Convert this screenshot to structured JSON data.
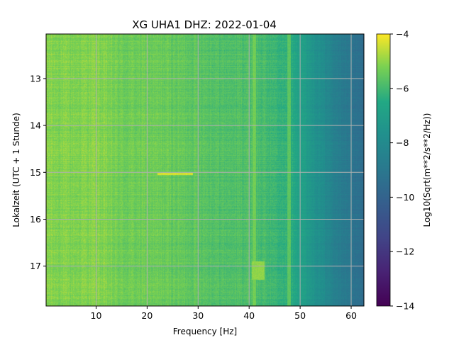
{
  "chart_data": {
    "type": "heatmap",
    "title": "XG UHA1  DHZ: 2022-01-04",
    "xlabel": "Frequency [Hz]",
    "ylabel": "Lokalzeit (UTC + 1 Stunde)",
    "xlim": [
      0.2,
      62.5
    ],
    "ylim": [
      17.85,
      12.05
    ],
    "y_inverted": true,
    "xticks": [
      10,
      20,
      30,
      40,
      50,
      60
    ],
    "yticks": [
      13,
      14,
      15,
      16,
      17
    ],
    "grid": true,
    "colormap": "viridis",
    "colorbar": {
      "label": "Log10(Sqrt(m**2/s**2/Hz))",
      "range": [
        -14,
        -4
      ],
      "ticks": [
        -4,
        -6,
        -8,
        -10,
        -12,
        -14
      ],
      "tick_labels": [
        "−4",
        "−6",
        "−8",
        "−10",
        "−12",
        "−14"
      ]
    },
    "spectral_profile": {
      "frequency_hz": [
        0,
        5,
        10,
        15,
        20,
        25,
        30,
        35,
        40,
        45,
        48,
        50,
        52,
        54,
        56,
        58,
        60,
        62.5
      ],
      "log10_amplitude": [
        -5.1,
        -5.2,
        -5.1,
        -5.4,
        -5.4,
        -5.5,
        -5.6,
        -5.8,
        -5.8,
        -6.1,
        -6.4,
        -6.8,
        -7.3,
        -7.8,
        -8.3,
        -8.7,
        -9.1,
        -9.6
      ]
    },
    "features": [
      {
        "frequency_hz": [
          22,
          29
        ],
        "time": 15.03,
        "log10_amplitude": -4.3
      },
      {
        "frequency_hz": [
          40.5,
          43
        ],
        "time": [
          16.9,
          17.3
        ],
        "log10_amplitude": -5.0
      },
      {
        "frequency_hz": 41,
        "time": [
          12.05,
          17.85
        ],
        "log10_amplitude": -5.3
      },
      {
        "frequency_hz": 47.8,
        "time": [
          12.05,
          17.85
        ],
        "log10_amplitude": -5.6
      }
    ]
  }
}
